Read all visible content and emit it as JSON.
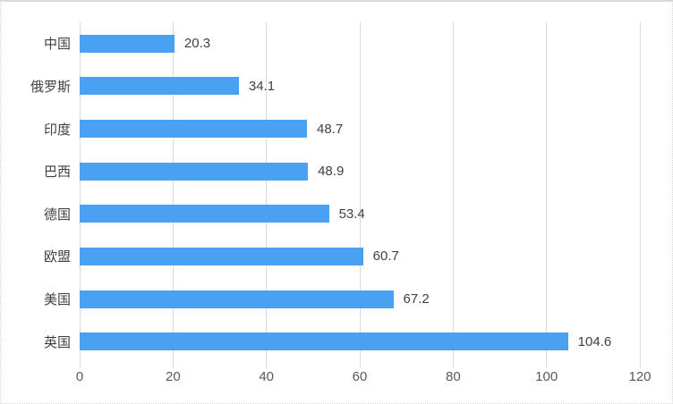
{
  "chart_data": {
    "type": "bar",
    "orientation": "horizontal",
    "title": "",
    "categories": [
      "中国",
      "俄罗斯",
      "印度",
      "巴西",
      "德国",
      "欧盟",
      "美国",
      "英国"
    ],
    "values": [
      20.3,
      34.1,
      48.7,
      48.9,
      53.4,
      60.7,
      67.2,
      104.6
    ],
    "data_labels": [
      "20.3",
      "34.1",
      "48.7",
      "48.9",
      "53.4",
      "60.7",
      "67.2",
      "104.6"
    ],
    "x_tick_labels": [
      "0",
      "20",
      "40",
      "60",
      "80",
      "100",
      "120"
    ],
    "xlim": [
      0,
      120
    ],
    "grid": true,
    "legend": "none",
    "colors": {
      "bar": "#4AA1F1",
      "gridline": "#D9D9D9",
      "axis_tick": "#D9D9D9",
      "category_label": "#404040",
      "value_label": "#404040",
      "x_tick_label": "#595959",
      "background": "#FFFFFF",
      "chart_border": "#D9D9D9"
    }
  }
}
